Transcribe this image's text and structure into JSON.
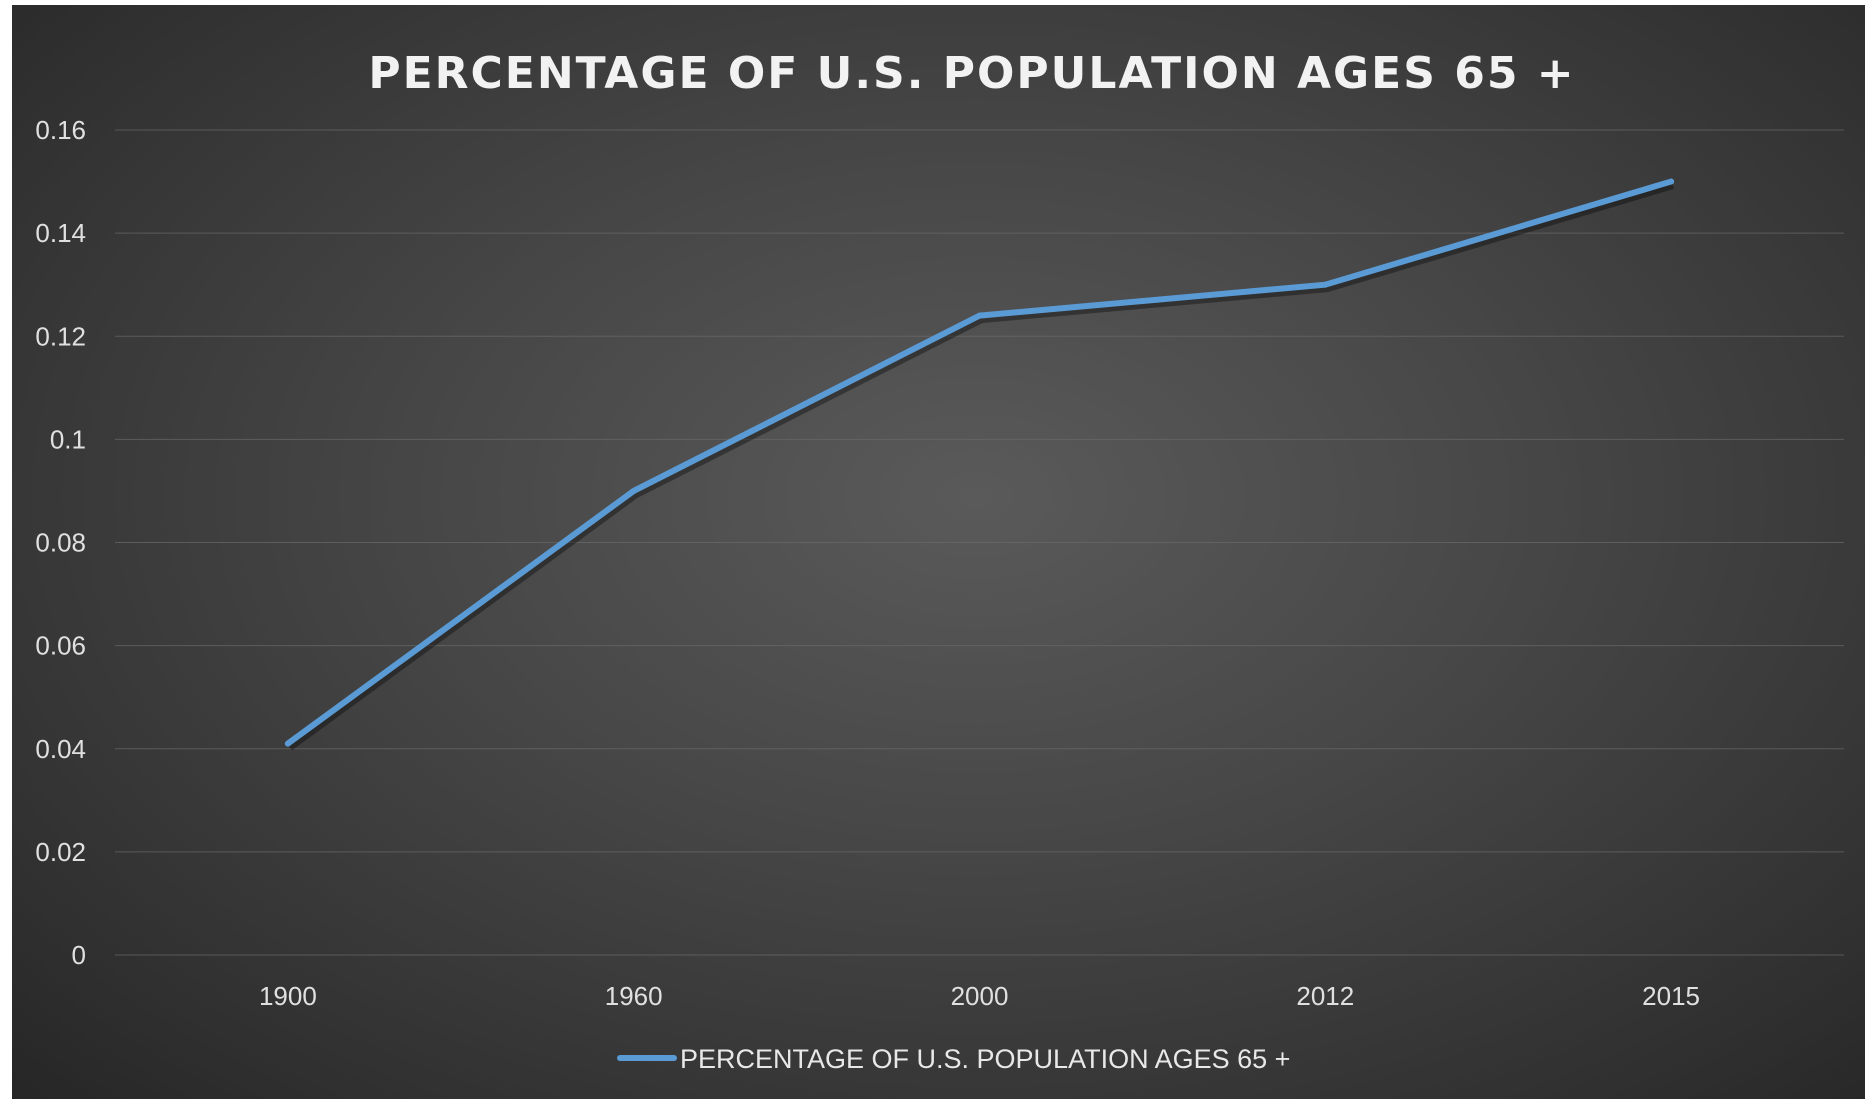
{
  "chart_data": {
    "type": "line",
    "title": "PERCENTAGE OF U.S. POPULATION AGES 65 +",
    "xlabel": "",
    "ylabel": "",
    "categories": [
      "1900",
      "1960",
      "2000",
      "2012",
      "2015"
    ],
    "series": [
      {
        "name": "PERCENTAGE OF U.S. POPULATION AGES 65 +",
        "values": [
          0.041,
          0.09,
          0.124,
          0.13,
          0.15
        ],
        "color": "#5b9bd5"
      }
    ],
    "yticks": [
      "0",
      "0.02",
      "0.04",
      "0.06",
      "0.08",
      "0.1",
      "0.12",
      "0.14",
      "0.16"
    ],
    "ylim": [
      0,
      0.16
    ],
    "grid": true,
    "legend_position": "bottom"
  }
}
